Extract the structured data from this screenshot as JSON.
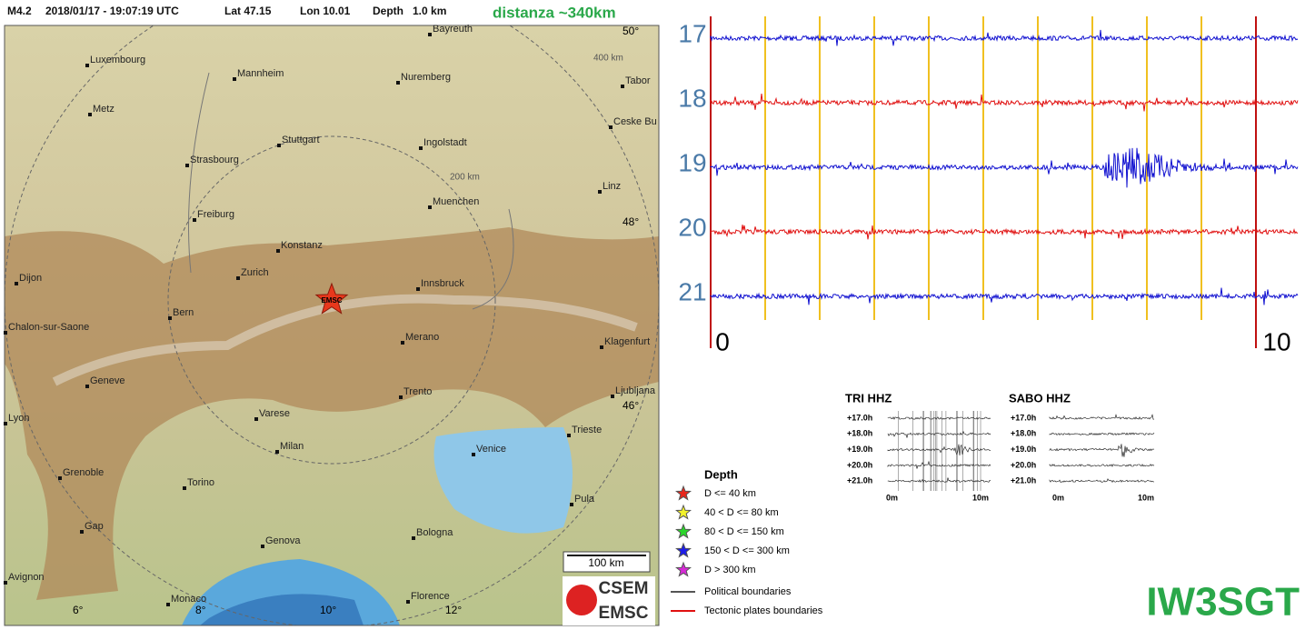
{
  "header": {
    "magnitude": "M4.2",
    "datetime": "2018/01/17 - 19:07:19 UTC",
    "lat": "Lat 47.15",
    "lon": "Lon 10.01",
    "depth": "Depth   1.0 km",
    "distance": "distanza ~340km"
  },
  "map": {
    "cities": [
      "Bayreuth",
      "Luxembourg",
      "Mannheim",
      "Nuremberg",
      "Tabor",
      "Metz",
      "Ceske Bu",
      "Stuttgart",
      "Ingolstadt",
      "Strasbourg",
      "Linz",
      "Muenchen",
      "Freiburg",
      "Konstanz",
      "Zurich",
      "Innsbruck",
      "Dijon",
      "Bern",
      "Chalon-sur-Saone",
      "Merano",
      "Klagenfurt",
      "Geneve",
      "Trento",
      "Ljubljana",
      "Varese",
      "Lyon",
      "Milan",
      "Trieste",
      "Venice",
      "Grenoble",
      "Torino",
      "Pula",
      "Gap",
      "Genova",
      "Bologna",
      "Avignon",
      "Monaco",
      "Florence"
    ],
    "lat_labels": [
      "50°",
      "48°",
      "46°"
    ],
    "lon_labels": [
      "6°",
      "8°",
      "10°",
      "12°"
    ],
    "ring_labels": [
      "400 km",
      "200 km"
    ],
    "epicenter": "EMSC",
    "scale": "100 km"
  },
  "legend": {
    "title": "Depth",
    "items": [
      {
        "label": "D <= 40 km",
        "color": "#e8261c"
      },
      {
        "label": "40 < D <= 80 km",
        "color": "#f2f22a"
      },
      {
        "label": "80 < D <= 150 km",
        "color": "#2ad62a"
      },
      {
        "label": "150 < D <= 300 km",
        "color": "#1c1ce8"
      },
      {
        "label": "D > 300 km",
        "color": "#d62ad6"
      }
    ],
    "boundaries": [
      {
        "label": "Political boundaries",
        "color": "#555555"
      },
      {
        "label": "Tectonic plates boundaries",
        "color": "#e01010"
      }
    ]
  },
  "logo": [
    "CSEM",
    "EMSC"
  ],
  "helicorder": {
    "hours": [
      "17",
      "18",
      "19",
      "20",
      "21"
    ],
    "axis": [
      "0",
      "10"
    ]
  },
  "small_plots": [
    {
      "title": "TRI HHZ",
      "rows": [
        "+17.0h",
        "+18.0h",
        "+19.0h",
        "+20.0h",
        "+21.0h"
      ],
      "axis": [
        "0m",
        "10m"
      ]
    },
    {
      "title": "SABO HHZ",
      "rows": [
        "+17.0h",
        "+18.0h",
        "+19.0h",
        "+20.0h",
        "+21.0h"
      ],
      "axis": [
        "0m",
        "10m"
      ]
    }
  ],
  "callsign": "IW3SGT"
}
